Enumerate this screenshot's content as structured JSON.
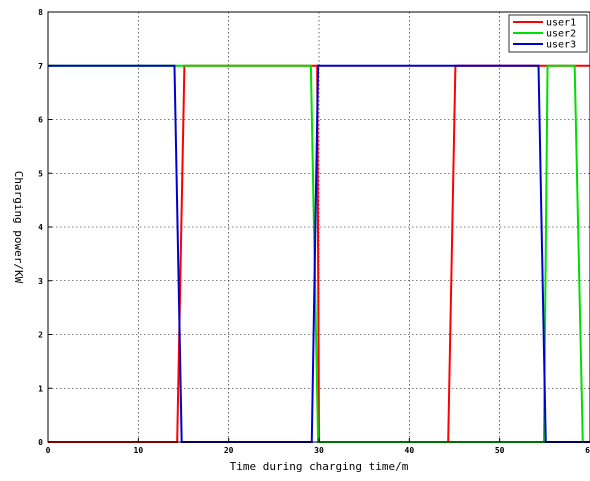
{
  "chart_data": {
    "type": "line",
    "xlabel": "Time during charging time/m",
    "ylabel": "Charging power/KW",
    "xlim": [
      0,
      60
    ],
    "ylim": [
      0,
      8
    ],
    "xticks": [
      "0",
      "10",
      "20",
      "30",
      "40",
      "50",
      "60"
    ],
    "yticks": [
      "0",
      "1",
      "2",
      "3",
      "4",
      "5",
      "6",
      "7",
      "8"
    ],
    "grid": true,
    "legend_position": "top-right",
    "series": [
      {
        "name": "user1",
        "color": "#ff0000",
        "x": [
          0,
          14.3,
          15.1,
          29.8,
          30.0,
          44.3,
          45.1,
          60.0
        ],
        "y": [
          0,
          0,
          7,
          7,
          0,
          0,
          7,
          7
        ]
      },
      {
        "name": "user2",
        "color": "#00dd00",
        "x": [
          0,
          13.9,
          14.1,
          29.1,
          29.9,
          54.9,
          55.3,
          58.3,
          59.2,
          60.0
        ],
        "y": [
          7,
          7,
          7,
          7,
          0,
          0,
          7,
          7,
          0,
          0
        ]
      },
      {
        "name": "user3",
        "color": "#0000cc",
        "x": [
          0,
          14.0,
          14.8,
          29.2,
          29.9,
          54.3,
          55.1,
          60.0
        ],
        "y": [
          7,
          7,
          0,
          0,
          7,
          7,
          0,
          0
        ]
      }
    ]
  }
}
